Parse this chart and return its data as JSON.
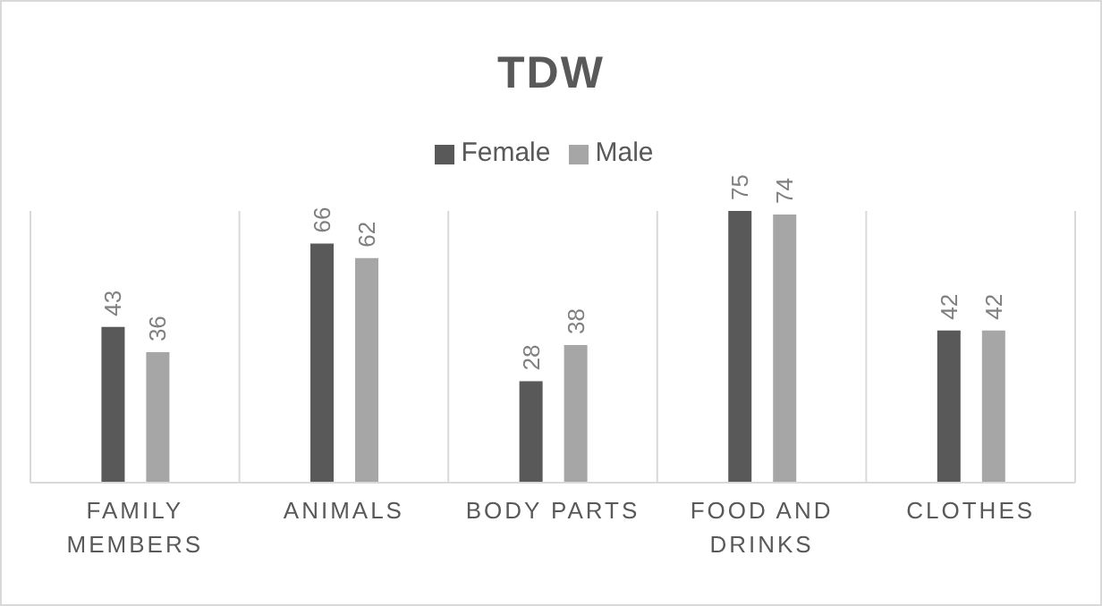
{
  "chart_data": {
    "type": "bar",
    "title": "TDW",
    "categories": [
      "FAMILY MEMBERS",
      "ANIMALS",
      "BODY PARTS",
      "FOOD AND DRINKS",
      "CLOTHES"
    ],
    "series": [
      {
        "name": "Female",
        "color": "#595959",
        "values": [
          43,
          66,
          28,
          75,
          42
        ]
      },
      {
        "name": "Male",
        "color": "#a6a6a6",
        "values": [
          36,
          62,
          38,
          74,
          42
        ]
      }
    ],
    "data_labels": true,
    "legend": "top",
    "grid": "x"
  }
}
